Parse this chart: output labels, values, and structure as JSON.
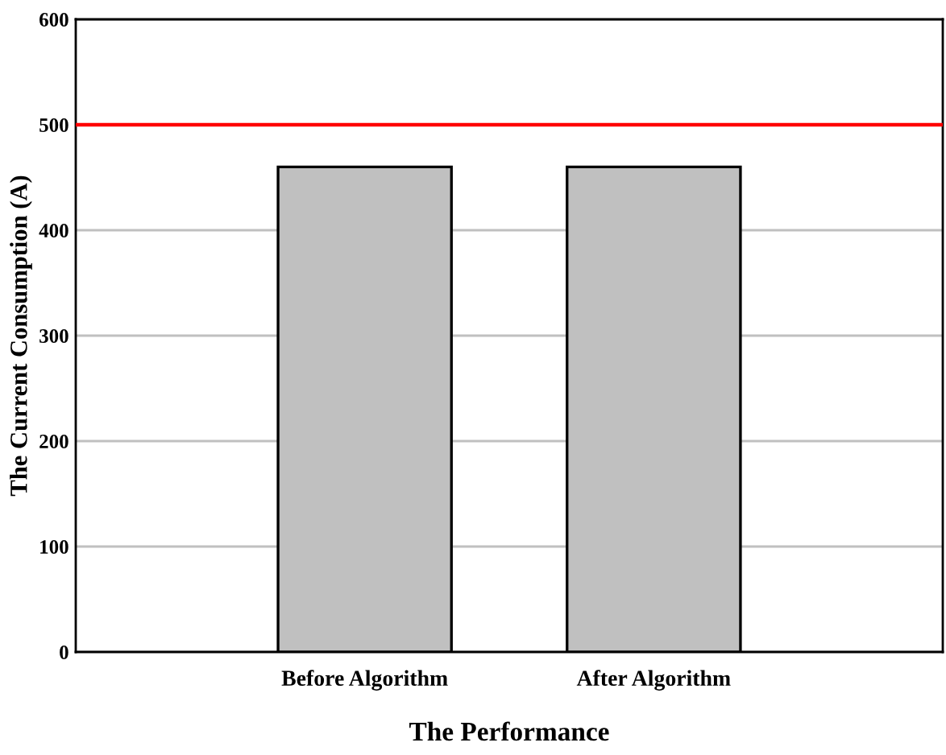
{
  "chart_data": {
    "type": "bar",
    "xlabel": "The Performance",
    "ylabel": "The Current Consumption (A)",
    "categories": [
      "Before Algorithm",
      "After Algorithm"
    ],
    "values": [
      460,
      460
    ],
    "color": "#c0c0c0",
    "ylim": [
      0,
      600
    ],
    "yticks": [
      0,
      100,
      200,
      300,
      400,
      500,
      600
    ],
    "grid": "y",
    "ref_lines": [
      {
        "axis": "y",
        "value": 500,
        "color": "#ff0000"
      }
    ]
  }
}
